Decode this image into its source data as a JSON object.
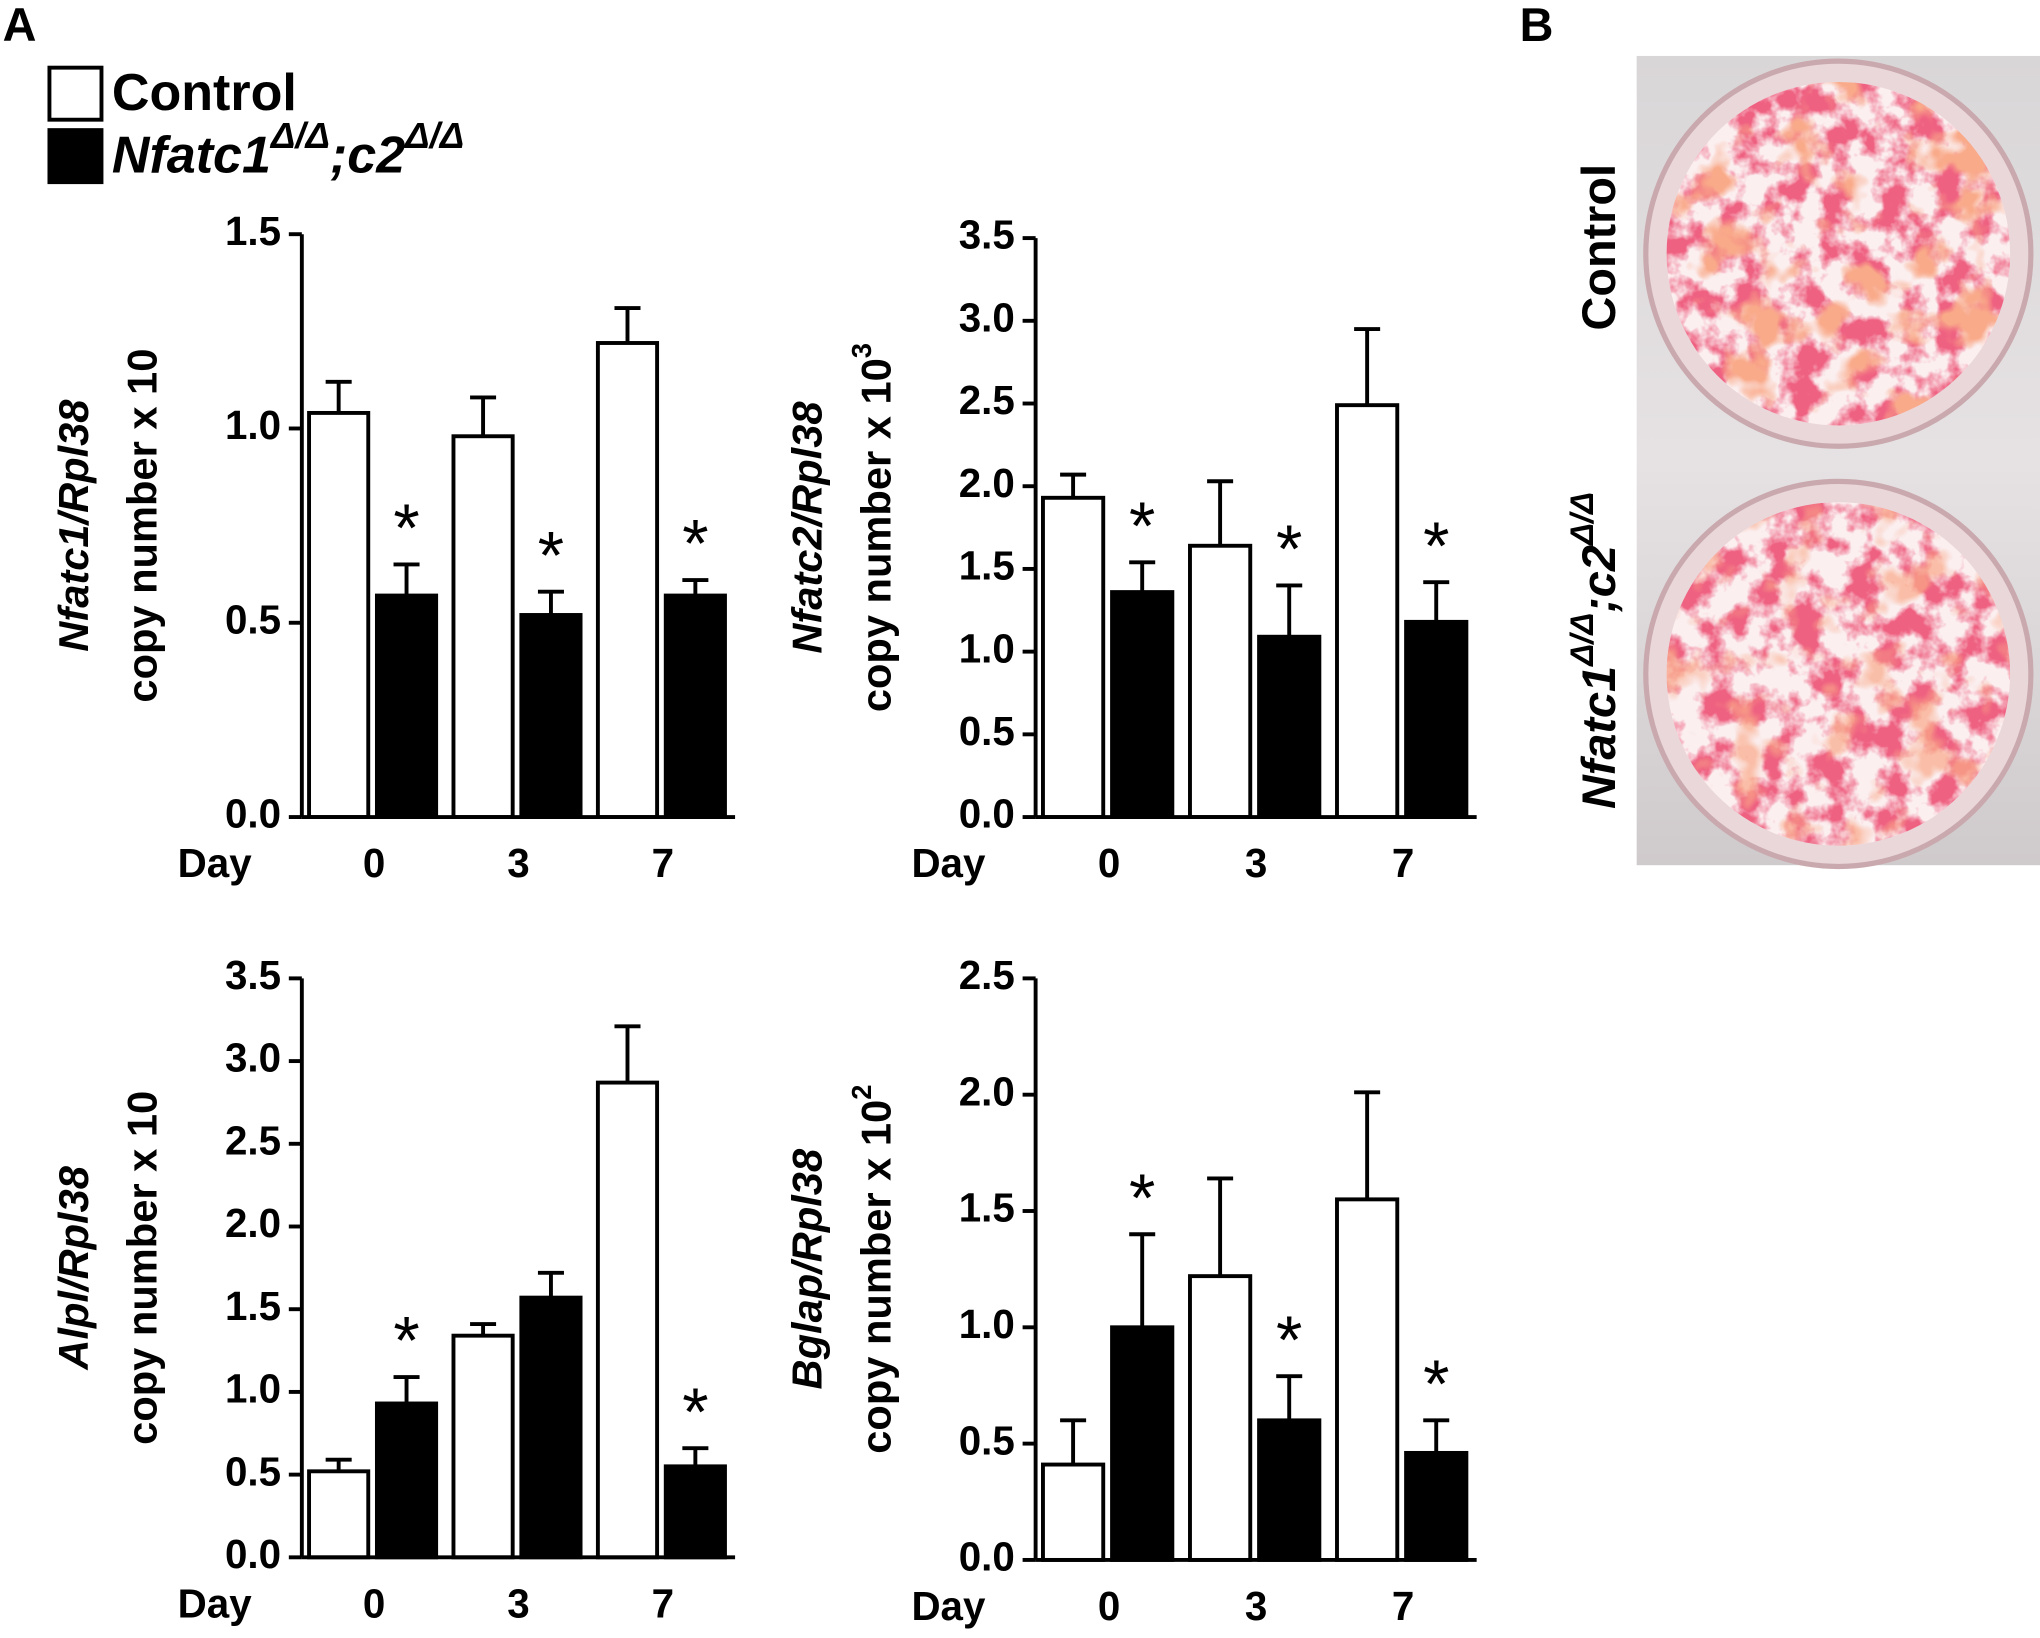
{
  "panel_labels": [
    "A",
    "B"
  ],
  "legend": [
    {
      "name": "Control",
      "color": "#ffffff"
    },
    {
      "name_parts": [
        "Nfatc1",
        "Δ/Δ",
        ";c2",
        "Δ/Δ"
      ],
      "color": "#000000"
    }
  ],
  "photo": {
    "labels": [
      {
        "parts": [
          "Control"
        ]
      },
      {
        "parts": [
          "Nfatc1",
          "Δ/Δ",
          ";c2",
          "Δ/Δ"
        ]
      }
    ]
  },
  "chart_data": [
    {
      "type": "bar",
      "ylabel": [
        "Nfatc1/Rpl38",
        "copy number x 10"
      ],
      "xlabel": "Day",
      "categories": [
        "0",
        "3",
        "7"
      ],
      "series": [
        {
          "values": [
            1.04,
            0.98,
            1.22
          ],
          "errors": [
            0.08,
            0.1,
            0.09
          ]
        },
        {
          "values": [
            0.57,
            0.52,
            0.57
          ],
          "errors": [
            0.08,
            0.06,
            0.04
          ],
          "annotations": [
            "*",
            "*",
            "*"
          ]
        }
      ],
      "ylim": [
        0,
        1.5
      ],
      "yticks": [
        {
          "value": 0,
          "label": "0.0"
        },
        0.5,
        {
          "value": 1,
          "label": "1.0"
        },
        1.5
      ]
    },
    {
      "type": "bar",
      "ylabel": [
        "Nfatc2/Rpl38",
        "copy number x 10"
      ],
      "ylabel_sup": "3",
      "xlabel": "Day",
      "categories": [
        "0",
        "3",
        "7"
      ],
      "series": [
        {
          "values": [
            1.93,
            1.64,
            2.49
          ],
          "errors": [
            0.14,
            0.39,
            0.46
          ]
        },
        {
          "values": [
            1.36,
            1.09,
            1.18
          ],
          "errors": [
            0.18,
            0.31,
            0.24
          ],
          "annotations": [
            "*",
            "*",
            "*"
          ]
        }
      ],
      "ylim": [
        0,
        3.5
      ],
      "yticks": [
        {
          "value": 0,
          "label": "0.0"
        },
        0.5,
        {
          "value": 1,
          "label": "1.0"
        },
        1.5,
        {
          "value": 2,
          "label": "2.0"
        },
        2.5,
        {
          "value": 3,
          "label": "3.0"
        },
        3.5
      ]
    },
    {
      "type": "bar",
      "ylabel": [
        "Alpl/Rpl38",
        "copy number x 10"
      ],
      "xlabel": "Day",
      "categories": [
        "0",
        "3",
        "7"
      ],
      "series": [
        {
          "values": [
            0.52,
            1.34,
            2.87
          ],
          "errors": [
            0.07,
            0.07,
            0.34
          ]
        },
        {
          "values": [
            0.93,
            1.57,
            0.55
          ],
          "errors": [
            0.16,
            0.15,
            0.11
          ],
          "annotations": [
            "*",
            null,
            "*"
          ]
        }
      ],
      "ylim": [
        0,
        3.5
      ],
      "yticks": [
        {
          "value": 0,
          "label": "0.0"
        },
        0.5,
        {
          "value": 1,
          "label": "1.0"
        },
        1.5,
        {
          "value": 2,
          "label": "2.0"
        },
        2.5,
        {
          "value": 3,
          "label": "3.0"
        },
        3.5
      ]
    },
    {
      "type": "bar",
      "ylabel": [
        "Bglap/Rpl38",
        "copy number x 10"
      ],
      "ylabel_sup": "2",
      "xlabel": "Day",
      "categories": [
        "0",
        "3",
        "7"
      ],
      "series": [
        {
          "values": [
            0.41,
            1.22,
            1.55
          ],
          "errors": [
            0.19,
            0.42,
            0.46
          ]
        },
        {
          "values": [
            1.0,
            0.6,
            0.46
          ],
          "errors": [
            0.4,
            0.19,
            0.14
          ],
          "annotations": [
            "*",
            "*",
            "*"
          ]
        }
      ],
      "ylim": [
        0,
        2.5
      ],
      "yticks": [
        {
          "value": 0,
          "label": "0.0"
        },
        0.5,
        {
          "value": 1,
          "label": "1.0"
        },
        1.5,
        {
          "value": 2,
          "label": "2.0"
        },
        2.5
      ]
    }
  ]
}
